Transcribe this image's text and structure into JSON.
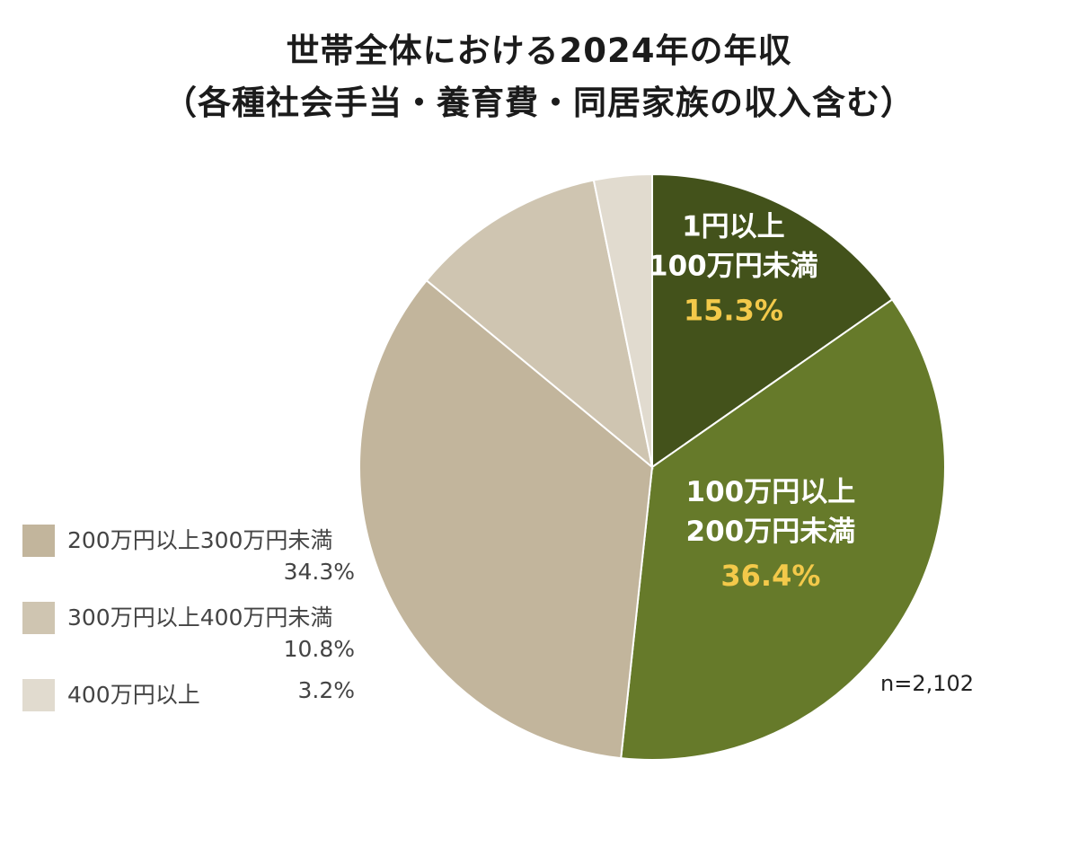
{
  "title_line1": "世帯全体における2024年の年収",
  "title_line2": "（各種社会手当・養育費・同居家族の収入含む）",
  "sample_note": "n=2,102",
  "colors": {
    "label_text": "#ffffff",
    "value_text": "#f3c94a",
    "legend_text": "#444444"
  },
  "chart_data": {
    "type": "pie",
    "title": "世帯全体における2024年の年収（各種社会手当・養育費・同居家族の収入含む）",
    "start": "12 o'clock",
    "direction": "clockwise",
    "slices": [
      {
        "label_lines": [
          "1円以上",
          "100万円未満"
        ],
        "label": "1円以上100万円未満",
        "value": 15.3,
        "display": "15.3%",
        "color": "#43521b",
        "label_placement": "inside"
      },
      {
        "label_lines": [
          "100万円以上",
          "200万円未満"
        ],
        "label": "100万円以上200万円未満",
        "value": 36.4,
        "display": "36.4%",
        "color": "#667a2a",
        "label_placement": "inside"
      },
      {
        "label": "200万円以上300万円未満",
        "value": 34.3,
        "display": "34.3%",
        "color": "#c2b59c",
        "label_placement": "legend"
      },
      {
        "label": "300万円以上400万円未満",
        "value": 10.8,
        "display": "10.8%",
        "color": "#cfc5b1",
        "label_placement": "legend"
      },
      {
        "label": "400万円以上",
        "value": 3.2,
        "display": "3.2%",
        "color": "#e1dbcf",
        "label_placement": "legend"
      }
    ]
  },
  "legend": [
    {
      "label": "200万円以上300万円未満",
      "value": "34.3%",
      "color": "#c2b59c"
    },
    {
      "label": "300万円以上400万円未満",
      "value": "10.8%",
      "color": "#cfc5b1"
    },
    {
      "label": "400万円以上",
      "value": "3.2%",
      "color": "#e1dbcf"
    }
  ]
}
